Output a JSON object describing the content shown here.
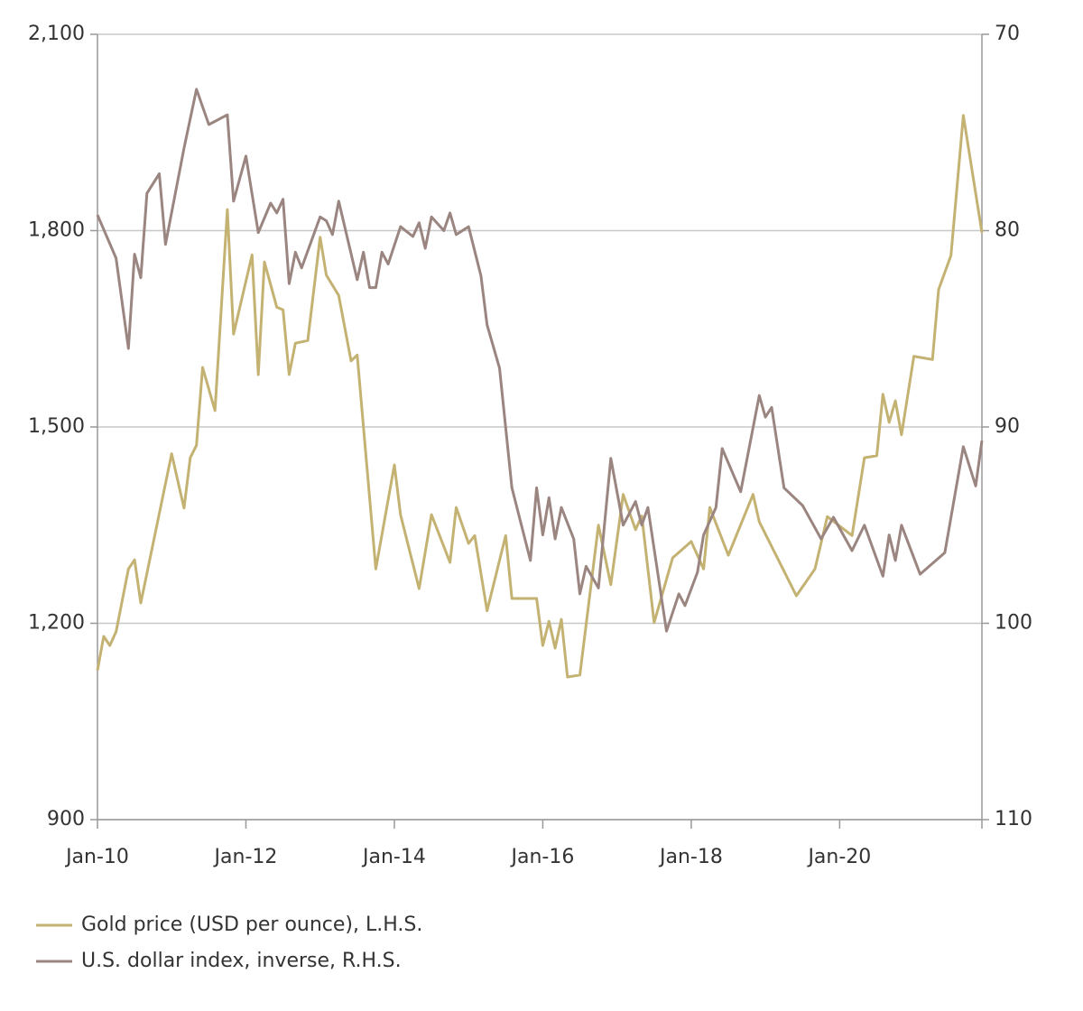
{
  "chart_data": {
    "type": "line",
    "xlim": [
      "2010-01",
      "2021-12"
    ],
    "xticks": [
      {
        "value": "2010-01",
        "label": "Jan-10"
      },
      {
        "value": "2012-01",
        "label": "Jan-12"
      },
      {
        "value": "2014-01",
        "label": "Jan-14"
      },
      {
        "value": "2016-01",
        "label": "Jan-16"
      },
      {
        "value": "2018-01",
        "label": "Jan-18"
      },
      {
        "value": "2020-01",
        "label": "Jan-20"
      }
    ],
    "ylim": [
      900,
      2100
    ],
    "yticks": [
      900,
      {
        "value": 1200,
        "label": "1,200"
      },
      {
        "value": 1500,
        "label": "1,500"
      },
      {
        "value": 1800,
        "label": "1,800"
      },
      {
        "value": 2100,
        "label": "2,100"
      }
    ],
    "y2lim": [
      110,
      70
    ],
    "y2ticks": [
      70,
      80,
      90,
      100,
      110
    ],
    "grid": true,
    "legend": "bottom-left",
    "series": [
      {
        "name": "Gold price (USD per ounce), L.H.S.",
        "color": "#c4b273",
        "x": [
          "2010-01",
          "2010-02",
          "2010-03",
          "2010-04",
          "2010-06",
          "2010-07",
          "2010-08",
          "2011-01",
          "2011-03",
          "2011-04",
          "2011-05",
          "2011-06",
          "2011-08",
          "2011-10",
          "2011-11",
          "2012-02",
          "2012-03",
          "2012-04",
          "2012-06",
          "2012-07",
          "2012-08",
          "2012-09",
          "2012-11",
          "2013-01",
          "2013-02",
          "2013-04",
          "2013-06",
          "2013-07",
          "2013-10",
          "2014-01",
          "2014-02",
          "2014-05",
          "2014-07",
          "2014-10",
          "2014-11",
          "2015-01",
          "2015-02",
          "2015-04",
          "2015-07",
          "2015-08",
          "2015-12",
          "2016-01",
          "2016-02",
          "2016-03",
          "2016-04",
          "2016-05",
          "2016-07",
          "2016-10",
          "2016-12",
          "2017-02",
          "2017-04",
          "2017-05",
          "2017-07",
          "2017-10",
          "2018-01",
          "2018-03",
          "2018-04",
          "2018-07",
          "2018-11",
          "2018-12",
          "2019-06",
          "2019-09",
          "2019-11",
          "2020-03",
          "2020-05",
          "2020-07",
          "2020-08",
          "2020-09",
          "2020-10",
          "2020-11",
          "2021-01",
          "2021-04",
          "2021-05",
          "2021-07",
          "2021-09",
          "2021-12"
        ],
        "values": [
          1128,
          1180,
          1166,
          1187,
          1283,
          1297,
          1231,
          1459,
          1376,
          1453,
          1472,
          1591,
          1525,
          1832,
          1642,
          1763,
          1580,
          1752,
          1683,
          1679,
          1580,
          1628,
          1632,
          1790,
          1732,
          1701,
          1601,
          1610,
          1283,
          1442,
          1366,
          1253,
          1366,
          1293,
          1377,
          1322,
          1334,
          1219,
          1334,
          1238,
          1238,
          1166,
          1203,
          1162,
          1206,
          1118,
          1121,
          1350,
          1259,
          1397,
          1343,
          1364,
          1201,
          1300,
          1325,
          1283,
          1377,
          1304,
          1397,
          1355,
          1242,
          1283,
          1363,
          1334,
          1453,
          1456,
          1550,
          1507,
          1540,
          1488,
          1608,
          1603,
          1710,
          1762,
          1976,
          1797
        ]
      },
      {
        "name": "U.S. dollar index, inverse, R.H.S.",
        "color": "#9a8580",
        "axis": "y2",
        "x": [
          "2010-01",
          "2010-04",
          "2010-06",
          "2010-07",
          "2010-08",
          "2010-09",
          "2010-11",
          "2010-12",
          "2011-03",
          "2011-05",
          "2011-07",
          "2011-10",
          "2011-11",
          "2012-01",
          "2012-03",
          "2012-05",
          "2012-06",
          "2012-07",
          "2012-08",
          "2012-09",
          "2012-10",
          "2013-01",
          "2013-02",
          "2013-03",
          "2013-04",
          "2013-07",
          "2013-08",
          "2013-09",
          "2013-10",
          "2013-11",
          "2013-12",
          "2014-02",
          "2014-04",
          "2014-05",
          "2014-06",
          "2014-07",
          "2014-09",
          "2014-10",
          "2014-11",
          "2015-01",
          "2015-03",
          "2015-04",
          "2015-06",
          "2015-08",
          "2015-11",
          "2015-12",
          "2016-01",
          "2016-02",
          "2016-03",
          "2016-04",
          "2016-06",
          "2016-07",
          "2016-08",
          "2016-10",
          "2016-12",
          "2017-02",
          "2017-04",
          "2017-05",
          "2017-06",
          "2017-09",
          "2017-11",
          "2017-12",
          "2018-02",
          "2018-03",
          "2018-05",
          "2018-06",
          "2018-09",
          "2018-12",
          "2019-01",
          "2019-02",
          "2019-04",
          "2019-07",
          "2019-10",
          "2019-12",
          "2020-03",
          "2020-05",
          "2020-08",
          "2020-09",
          "2020-10",
          "2020-11",
          "2021-02",
          "2021-06",
          "2021-09",
          "2021-11",
          "2021-12"
        ],
        "values": [
          79.2,
          81.4,
          86.0,
          81.2,
          82.4,
          78.1,
          77.1,
          80.7,
          75.8,
          72.8,
          74.6,
          74.1,
          78.5,
          76.2,
          80.1,
          78.6,
          79.1,
          78.4,
          82.7,
          81.1,
          81.9,
          79.3,
          79.5,
          80.2,
          78.5,
          82.5,
          81.1,
          82.9,
          82.9,
          81.1,
          81.7,
          79.8,
          80.3,
          79.6,
          80.9,
          79.3,
          80.0,
          79.1,
          80.2,
          79.8,
          82.3,
          84.8,
          87.0,
          93.1,
          96.8,
          93.1,
          95.5,
          93.6,
          95.7,
          94.1,
          95.7,
          98.5,
          97.1,
          98.2,
          91.6,
          95.0,
          93.8,
          95.0,
          94.1,
          100.4,
          98.5,
          99.1,
          97.4,
          95.5,
          94.1,
          91.1,
          93.3,
          88.4,
          89.5,
          89.0,
          93.1,
          94.0,
          95.7,
          94.6,
          96.3,
          95.0,
          97.6,
          95.5,
          96.8,
          95.0,
          97.5,
          96.4,
          91.0,
          93.0,
          90.7
        ]
      }
    ]
  }
}
